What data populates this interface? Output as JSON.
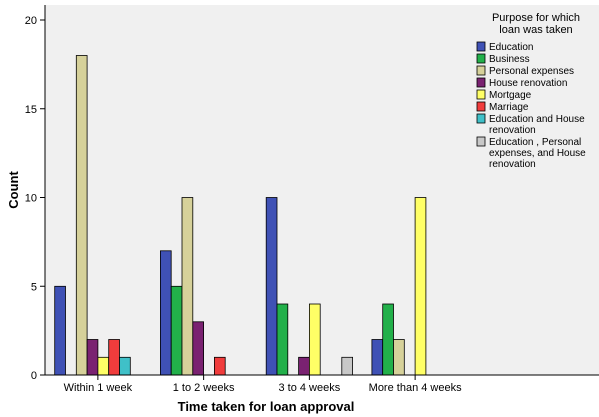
{
  "chart_data": {
    "type": "bar",
    "xlabel": "Time taken for loan approval",
    "ylabel": "Count",
    "ylim": [
      0,
      20
    ],
    "yticks": [
      0,
      5,
      10,
      15,
      20
    ],
    "grid": false,
    "legend_position": "right",
    "legend_title": [
      "Purpose for which",
      "loan was taken"
    ],
    "categories": [
      "Within 1 week",
      "1 to 2 weeks",
      "3 to 4 weeks",
      "More than 4 weeks"
    ],
    "series": [
      {
        "name": "Education",
        "lines": [
          "Education"
        ],
        "color": "#3f51b5",
        "values": [
          5,
          7,
          10,
          2
        ]
      },
      {
        "name": "Business",
        "lines": [
          "Business"
        ],
        "color": "#22b04a",
        "values": [
          null,
          5,
          4,
          4
        ]
      },
      {
        "name": "Personal expenses",
        "lines": [
          "Personal expenses"
        ],
        "color": "#d6d19a",
        "values": [
          18,
          10,
          null,
          2
        ]
      },
      {
        "name": "House renovation",
        "lines": [
          "House renovation"
        ],
        "color": "#7a2271",
        "values": [
          2,
          3,
          1,
          null
        ]
      },
      {
        "name": "Mortgage",
        "lines": [
          "Mortgage"
        ],
        "color": "#ffff66",
        "values": [
          1,
          null,
          4,
          10
        ]
      },
      {
        "name": "Marriage",
        "lines": [
          "Marriage"
        ],
        "color": "#f03c3c",
        "values": [
          2,
          1,
          null,
          null
        ]
      },
      {
        "name": "Education and House renovation",
        "lines": [
          "Education and House",
          "renovation"
        ],
        "color": "#3fc0c8",
        "values": [
          1,
          null,
          null,
          null
        ]
      },
      {
        "name": "Education , Personal expenses, and House renovation",
        "lines": [
          "Education , Personal",
          "expenses, and House",
          "renovation"
        ],
        "color": "#c8c8c8",
        "values": [
          null,
          null,
          1,
          null
        ]
      }
    ]
  }
}
